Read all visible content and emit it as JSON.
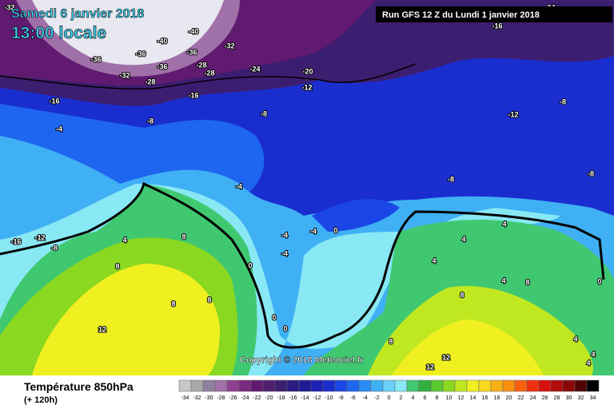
{
  "header": {
    "date": "Samedi 6 janvier 2018",
    "time": "13:00 locale",
    "run": "Run GFS 12 Z du Lundi 1 janvier 2018"
  },
  "copyright": "Copyright © 2018 Meteociel.fr",
  "legend": {
    "title": "Température 850hPa",
    "lead": "(+ 120h)"
  },
  "colorbar": {
    "ticks": [
      -34,
      -32,
      -30,
      -28,
      -26,
      -24,
      -22,
      -20,
      -18,
      -16,
      -14,
      -12,
      -10,
      -8,
      -6,
      -4,
      -2,
      0,
      2,
      4,
      6,
      8,
      10,
      12,
      14,
      16,
      18,
      20,
      22,
      24,
      26,
      28,
      30,
      32,
      34
    ],
    "colors": [
      "#c8c8c8",
      "#a8a8a8",
      "#9080a0",
      "#a070a8",
      "#904090",
      "#7a2a80",
      "#601a70",
      "#502070",
      "#3c1e70",
      "#2a1c80",
      "#201a96",
      "#1c20b4",
      "#1a2ed0",
      "#1a46e6",
      "#1e66f0",
      "#2a8cf4",
      "#40b0f4",
      "#6ad0f8",
      "#88e8f4",
      "#40c870",
      "#30b040",
      "#58c830",
      "#8ad820",
      "#c0e820",
      "#f0f020",
      "#f8d820",
      "#f8b018",
      "#f89010",
      "#f86010",
      "#f03010",
      "#d81010",
      "#b00c0c",
      "#880808",
      "#500404",
      "#000000"
    ]
  },
  "map_labels": [
    -32,
    -24,
    -16,
    -40,
    -40,
    -36,
    -36,
    -36,
    -36,
    -32,
    -32,
    -28,
    -28,
    -28,
    -24,
    -20,
    -12,
    -16,
    -16,
    -8,
    -8,
    -4,
    -12,
    -8,
    -8,
    -8,
    -4,
    -16,
    -12,
    -8,
    4,
    8,
    8,
    0,
    -4,
    -4,
    -4,
    0,
    8,
    8,
    12,
    0,
    0,
    8,
    12,
    12,
    0,
    4,
    4,
    4,
    4,
    8,
    8,
    4,
    4,
    4
  ]
}
